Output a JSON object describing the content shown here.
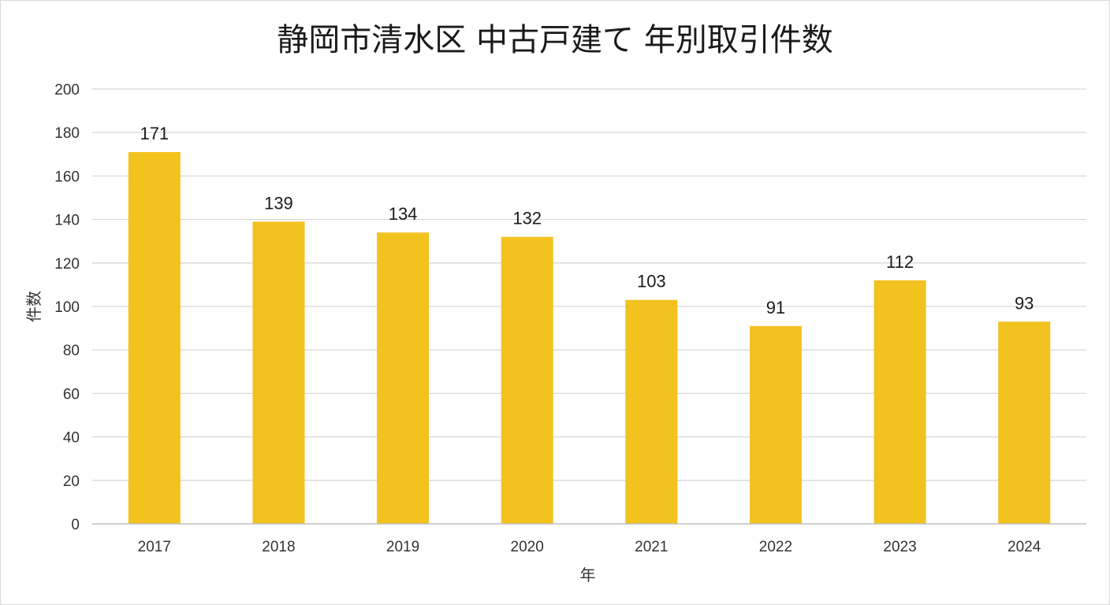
{
  "chart_data": {
    "type": "bar",
    "title": "静岡市清水区 中古戸建て 年別取引件数",
    "xlabel": "年",
    "ylabel": "件数",
    "categories": [
      "2017",
      "2018",
      "2019",
      "2020",
      "2021",
      "2022",
      "2023",
      "2024"
    ],
    "series": [
      {
        "values": [
          171,
          139,
          134,
          132,
          103,
          91,
          112,
          93
        ]
      }
    ],
    "ylim": [
      0,
      200
    ],
    "yticks": [
      0,
      20,
      40,
      60,
      80,
      100,
      120,
      140,
      160,
      180,
      200
    ],
    "grid": true,
    "legend": "none",
    "data_labels": true,
    "colors": {
      "bar": "#F2C21F",
      "grid": "#d9d9d9",
      "axis": "#bfbfbf"
    }
  }
}
